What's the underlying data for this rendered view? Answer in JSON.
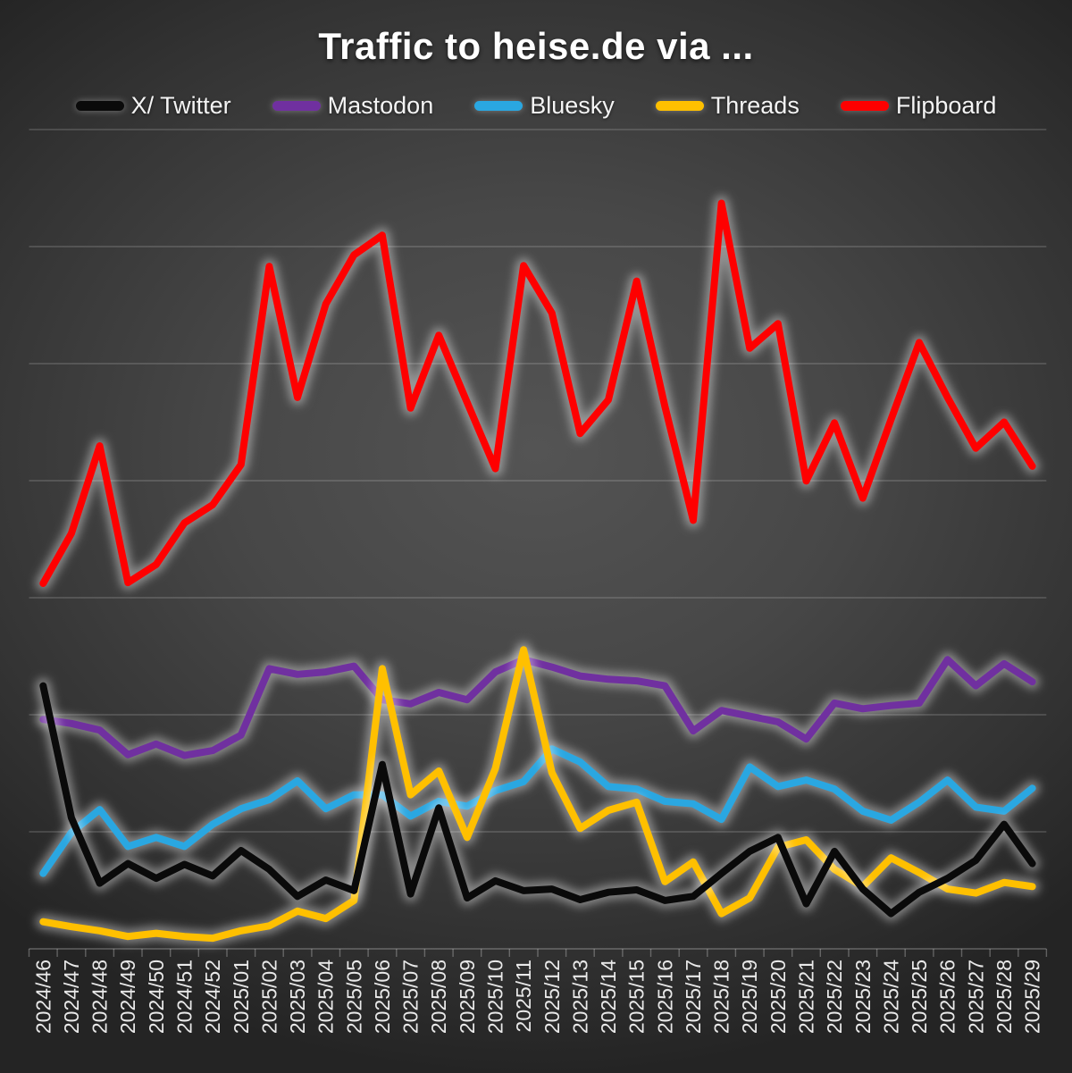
{
  "title": "Traffic to heise.de via ...",
  "colors": {
    "background_center": "#545454",
    "background_edge": "#242424",
    "gridline": "rgba(255,255,255,0.28)",
    "axis_label": "#e9e9e9",
    "title_text": "#ffffff",
    "line_glow": "rgba(255,255,255,0.40)"
  },
  "chart_data": {
    "type": "line",
    "title": "Traffic to heise.de via ...",
    "xlabel": "",
    "ylabel": "",
    "y_axis_visible": false,
    "ylim": [
      0,
      100
    ],
    "gridline_count": 8,
    "grid": true,
    "legend_position": "top",
    "x": [
      "2024/46",
      "2024/47",
      "2024/48",
      "2024/49",
      "2024/50",
      "2024/51",
      "2024/52",
      "2025/01",
      "2025/02",
      "2025/03",
      "2025/04",
      "2025/05",
      "2025/06",
      "2025/07",
      "2025/08",
      "2025/09",
      "2025/10",
      "2025/11",
      "2025/12",
      "2025/13",
      "2025/14",
      "2025/15",
      "2025/16",
      "2025/17",
      "2025/18",
      "2025/19",
      "2025/20",
      "2025/21",
      "2025/22",
      "2025/23",
      "2025/24",
      "2025/25",
      "2025/26",
      "2025/27",
      "2025/28",
      "2025/29"
    ],
    "series": [
      {
        "name": "X/ Twitter",
        "color": "#0a0a0a",
        "values": [
          32.1,
          16.0,
          8.0,
          10.4,
          8.6,
          10.3,
          8.9,
          12.0,
          9.7,
          6.4,
          8.4,
          7.1,
          22.5,
          6.7,
          17.2,
          6.2,
          8.3,
          7.1,
          7.3,
          6.0,
          6.9,
          7.2,
          5.9,
          6.4,
          9.2,
          11.9,
          13.6,
          5.5,
          11.9,
          7.3,
          4.3,
          6.9,
          8.6,
          10.8,
          15.2,
          10.4
        ]
      },
      {
        "name": "Mastodon",
        "color": "#7030a0",
        "values": [
          28.0,
          27.5,
          26.7,
          23.7,
          25.0,
          23.6,
          24.2,
          26.1,
          34.2,
          33.5,
          33.8,
          34.5,
          30.4,
          29.9,
          31.3,
          30.4,
          33.8,
          35.3,
          34.4,
          33.3,
          32.9,
          32.7,
          32.1,
          26.6,
          29.1,
          28.4,
          27.7,
          25.6,
          30.0,
          29.3,
          29.7,
          30.0,
          35.3,
          32.1,
          34.8,
          32.6
        ]
      },
      {
        "name": "Bluesky",
        "color": "#2aa7e1",
        "values": [
          9.2,
          14.2,
          17.0,
          12.5,
          13.6,
          12.5,
          15.2,
          17.1,
          18.2,
          20.5,
          17.1,
          18.8,
          18.8,
          16.2,
          18.0,
          17.4,
          19.3,
          20.4,
          24.4,
          22.8,
          19.8,
          19.5,
          18.0,
          17.7,
          15.8,
          22.2,
          19.8,
          20.6,
          19.5,
          16.8,
          15.7,
          17.9,
          20.6,
          17.3,
          16.8,
          19.6
        ]
      },
      {
        "name": "Threads",
        "color": "#ffc000",
        "values": [
          3.3,
          2.7,
          2.2,
          1.5,
          1.9,
          1.5,
          1.3,
          2.2,
          2.8,
          4.6,
          3.7,
          5.9,
          34.2,
          18.8,
          21.7,
          13.6,
          22.0,
          36.5,
          21.5,
          14.7,
          16.9,
          17.9,
          8.2,
          10.6,
          4.3,
          6.2,
          12.4,
          13.3,
          9.7,
          7.6,
          11.1,
          9.3,
          7.3,
          6.8,
          8.1,
          7.6
        ]
      },
      {
        "name": "Flipboard",
        "color": "#fe0000",
        "values": [
          44.6,
          50.7,
          61.4,
          44.7,
          46.9,
          52.0,
          54.2,
          59.1,
          83.3,
          67.3,
          78.7,
          84.7,
          87.1,
          66.0,
          74.9,
          66.7,
          58.6,
          83.4,
          77.6,
          62.9,
          67.0,
          81.5,
          66.2,
          52.3,
          91.0,
          73.3,
          76.3,
          57.1,
          64.2,
          55.0,
          64.6,
          74.0,
          67.3,
          61.1,
          64.3,
          58.9
        ]
      }
    ],
    "z_order": [
      4,
      1,
      2,
      3,
      0
    ]
  }
}
